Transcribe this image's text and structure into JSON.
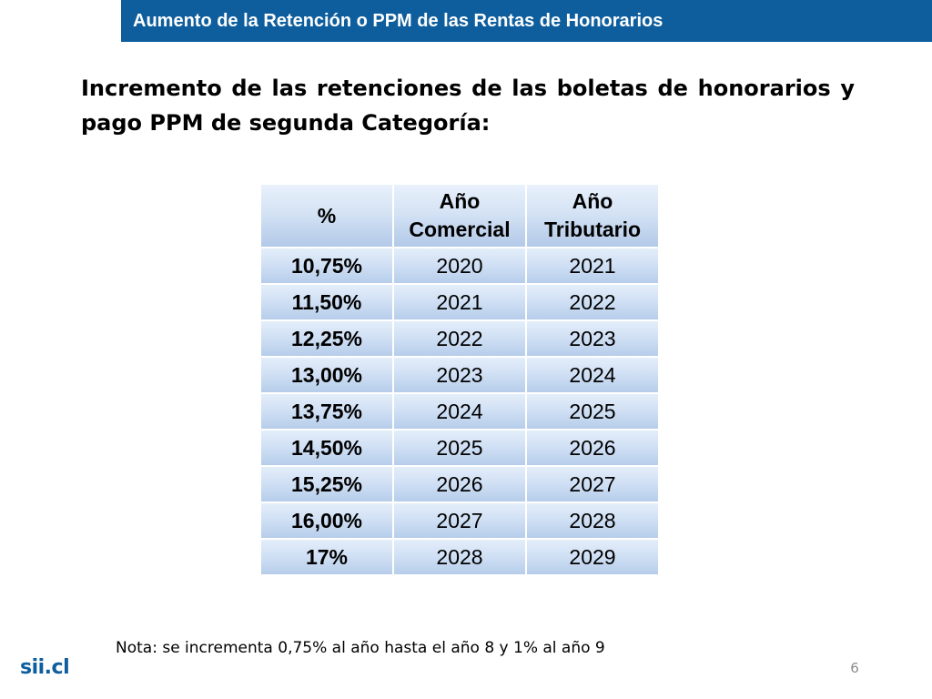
{
  "header": {
    "title": "Aumento de la Retención o PPM de las Rentas de Honorarios",
    "color": "#0e5e9e"
  },
  "heading": "Incremento de las retenciones de las boletas de honorarios y pago PPM de segunda Categoría:",
  "table": {
    "columns": [
      "%",
      "Año Comercial",
      "Año Tributario"
    ],
    "rows": [
      {
        "rate": "10,75%",
        "commercial_year": "2020",
        "tax_year": "2021"
      },
      {
        "rate": "11,50%",
        "commercial_year": "2021",
        "tax_year": "2022"
      },
      {
        "rate": "12,25%",
        "commercial_year": "2022",
        "tax_year": "2023"
      },
      {
        "rate": "13,00%",
        "commercial_year": "2023",
        "tax_year": "2024"
      },
      {
        "rate": "13,75%",
        "commercial_year": "2024",
        "tax_year": "2025"
      },
      {
        "rate": "14,50%",
        "commercial_year": "2025",
        "tax_year": "2026"
      },
      {
        "rate": "15,25%",
        "commercial_year": "2026",
        "tax_year": "2027"
      },
      {
        "rate": "16,00%",
        "commercial_year": "2027",
        "tax_year": "2028"
      },
      {
        "rate": "17%",
        "commercial_year": "2028",
        "tax_year": "2029"
      }
    ]
  },
  "note": "Nota: se incrementa 0,75% al año hasta el año 8 y 1% al año 9",
  "footer": {
    "logo_text": "sii.cl",
    "slide_number": "6"
  }
}
